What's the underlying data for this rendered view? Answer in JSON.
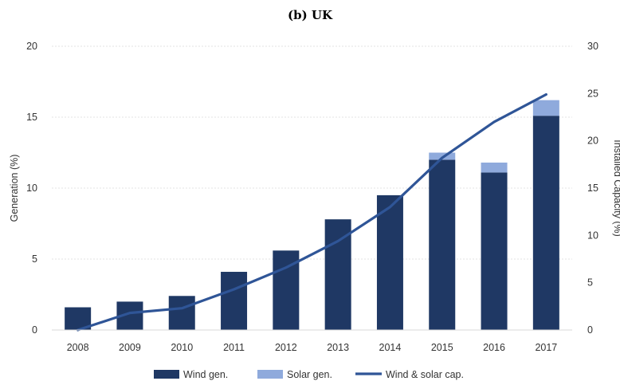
{
  "chart_data": {
    "type": "bar",
    "title": "(b) UK",
    "categories": [
      "2008",
      "2009",
      "2010",
      "2011",
      "2012",
      "2013",
      "2014",
      "2015",
      "2016",
      "2017"
    ],
    "series": [
      {
        "name": "Wind gen.",
        "kind": "bar",
        "stack": "gen",
        "axis": "left",
        "color": "#1f3864",
        "values": [
          1.6,
          2.0,
          2.4,
          4.1,
          5.6,
          7.8,
          9.5,
          12.0,
          11.1,
          15.1
        ]
      },
      {
        "name": "Solar gen.",
        "kind": "bar",
        "stack": "gen",
        "axis": "left",
        "color": "#8faadc",
        "values": [
          0.0,
          0.0,
          0.0,
          0.0,
          0.0,
          0.0,
          0.0,
          0.5,
          0.7,
          1.1
        ]
      },
      {
        "name": "Wind & solar cap.",
        "kind": "line",
        "axis": "right",
        "color": "#2f5597",
        "values": [
          0.0,
          1.8,
          2.3,
          4.3,
          6.6,
          9.4,
          13.0,
          18.2,
          22.0,
          24.9
        ]
      }
    ],
    "ylabel_left": "Generation (%)",
    "ylabel_right": "Installed Capacity (%)",
    "ylim_left": [
      0,
      20
    ],
    "yticks_left": [
      0,
      5,
      10,
      15,
      20
    ],
    "ylim_right": [
      0,
      30
    ],
    "yticks_right": [
      0,
      5,
      10,
      15,
      20,
      25,
      30
    ],
    "grid": true,
    "legend_position": "bottom"
  }
}
